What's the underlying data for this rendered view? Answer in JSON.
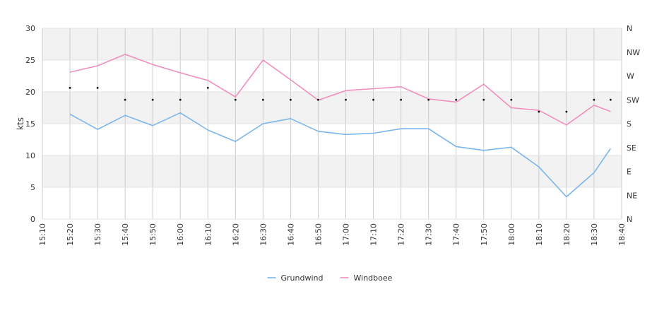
{
  "chart_data": {
    "type": "line",
    "ylabel": "kts",
    "ylim": [
      0,
      30
    ],
    "yticks": [
      0,
      5,
      10,
      15,
      20,
      25,
      30
    ],
    "xticks": [
      "15:10",
      "15:20",
      "15:30",
      "15:40",
      "15:50",
      "16:00",
      "16:10",
      "16:20",
      "16:30",
      "16:40",
      "16:50",
      "17:00",
      "17:10",
      "17:20",
      "17:30",
      "17:40",
      "17:50",
      "18:00",
      "18:10",
      "18:20",
      "18:30",
      "18:40"
    ],
    "x": [
      "15:20",
      "15:30",
      "15:40",
      "15:50",
      "16:00",
      "16:10",
      "16:20",
      "16:30",
      "16:40",
      "16:50",
      "17:00",
      "17:10",
      "17:20",
      "17:30",
      "17:40",
      "17:50",
      "18:00",
      "18:10",
      "18:20",
      "18:30",
      "18:36"
    ],
    "series": [
      {
        "name": "Grundwind",
        "color": "#7cb5ec",
        "values": [
          16.5,
          14.1,
          16.3,
          14.7,
          16.7,
          14.0,
          12.2,
          15.0,
          15.8,
          13.8,
          13.3,
          13.5,
          14.2,
          14.2,
          11.4,
          10.8,
          11.3,
          8.2,
          3.5,
          7.3,
          11.1
        ]
      },
      {
        "name": "Windboee",
        "color": "#f08fbf",
        "values": [
          23.1,
          24.1,
          25.9,
          24.3,
          23.0,
          21.8,
          19.2,
          25.0,
          21.9,
          18.7,
          20.2,
          20.5,
          20.8,
          18.9,
          18.4,
          21.2,
          17.5,
          17.1,
          14.8,
          17.9,
          16.9
        ]
      }
    ],
    "direction_axis": {
      "labels": [
        "N",
        "NE",
        "E",
        "SE",
        "S",
        "SW",
        "W",
        "NW",
        "N"
      ],
      "points": [
        "WSW",
        "WSW",
        "SW",
        "SW",
        "SW",
        "WSW",
        "SW",
        "SW",
        "SW",
        "SW",
        "SW",
        "SW",
        "SW",
        "SW",
        "SW",
        "SW",
        "SW",
        "SSW",
        "SSW",
        "SW",
        "SW"
      ]
    },
    "grid": true,
    "legend_position": "bottom-center"
  }
}
